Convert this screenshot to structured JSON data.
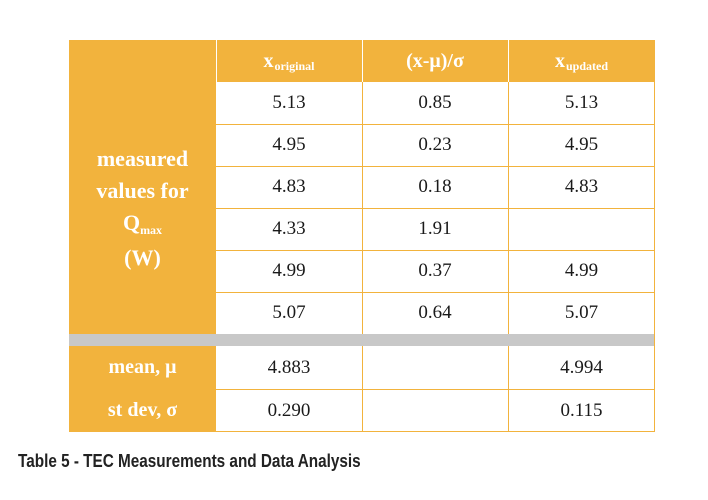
{
  "table": {
    "headers": {
      "col1_main": "x",
      "col1_sub": "original",
      "col2": "(x-μ)/σ",
      "col3_main": "x",
      "col3_sub": "updated"
    },
    "side_label": {
      "line1": "measured",
      "line2": "values for",
      "line3_main": "Q",
      "line3_sub": "max",
      "line4": "(W)"
    },
    "rows": [
      {
        "x_original": "5.13",
        "z": "0.85",
        "x_updated": "5.13"
      },
      {
        "x_original": "4.95",
        "z": "0.23",
        "x_updated": "4.95"
      },
      {
        "x_original": "4.83",
        "z": "0.18",
        "x_updated": "4.83"
      },
      {
        "x_original": "4.33",
        "z": "1.91",
        "x_updated": ""
      },
      {
        "x_original": "4.99",
        "z": "0.37",
        "x_updated": "4.99"
      },
      {
        "x_original": "5.07",
        "z": "0.64",
        "x_updated": "5.07"
      }
    ],
    "summary": [
      {
        "label": "mean, μ",
        "x_original": "4.883",
        "z": "",
        "x_updated": "4.994"
      },
      {
        "label": "st dev, σ",
        "x_original": "0.290",
        "z": "",
        "x_updated": "0.115"
      }
    ]
  },
  "caption": "Table 5 - TEC Measurements and Data Analysis",
  "colors": {
    "accent": "#F2B33D",
    "separator": "#C8C8C8"
  }
}
